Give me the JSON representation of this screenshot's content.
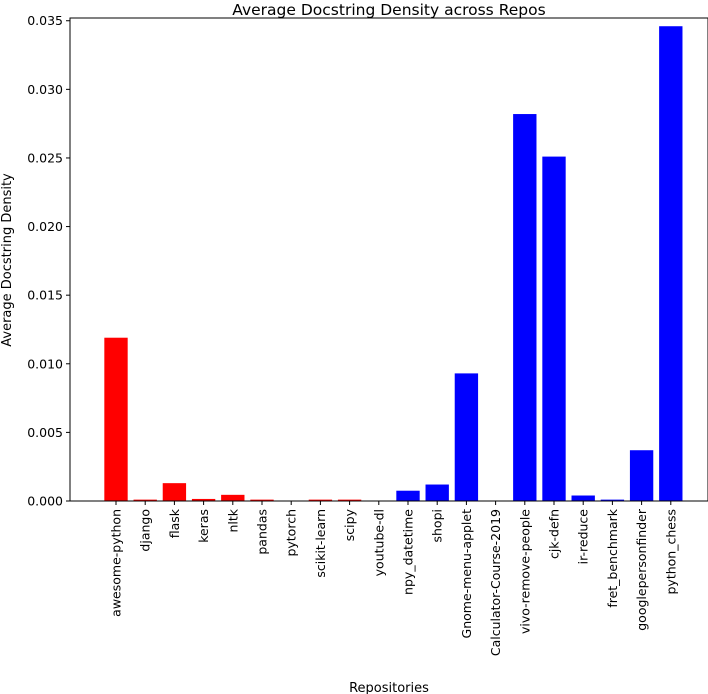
{
  "chart_data": {
    "type": "bar",
    "title": "Average Docstring Density across Repos",
    "xlabel": "Repositories",
    "ylabel": "Average Docstring Density",
    "ylim": [
      0,
      0.0352
    ],
    "yticks": [
      "0.000",
      "0.005",
      "0.010",
      "0.015",
      "0.020",
      "0.025",
      "0.030",
      "0.035"
    ],
    "grid": false,
    "categories": [
      "awesome-python",
      "django",
      "flask",
      "keras",
      "nltk",
      "pandas",
      "pytorch",
      "scikit-learn",
      "scipy",
      "youtube-dl",
      "npy_datetime",
      "shopi",
      "Gnome-menu-applet",
      "Calculator-Course-2019",
      "vivo-remove-people",
      "cjk-defn",
      "ir-reduce",
      "fret_benchmark",
      "googlepersonfinder",
      "python_chess"
    ],
    "values": [
      0.0119,
      0.0001,
      0.0013,
      0.00015,
      0.00045,
      0.0001,
      0.0,
      0.0001,
      0.0001,
      0.0,
      0.00075,
      0.0012,
      0.0093,
      0.0,
      0.0282,
      0.0251,
      0.0004,
      0.0001,
      0.0037,
      0.0346
    ],
    "colors": [
      "#ff0000",
      "#ff0000",
      "#ff0000",
      "#ff0000",
      "#ff0000",
      "#ff0000",
      "#ff0000",
      "#ff0000",
      "#ff0000",
      "#ff0000",
      "#0000ff",
      "#0000ff",
      "#0000ff",
      "#0000ff",
      "#0000ff",
      "#0000ff",
      "#0000ff",
      "#0000ff",
      "#0000ff",
      "#0000ff"
    ]
  }
}
